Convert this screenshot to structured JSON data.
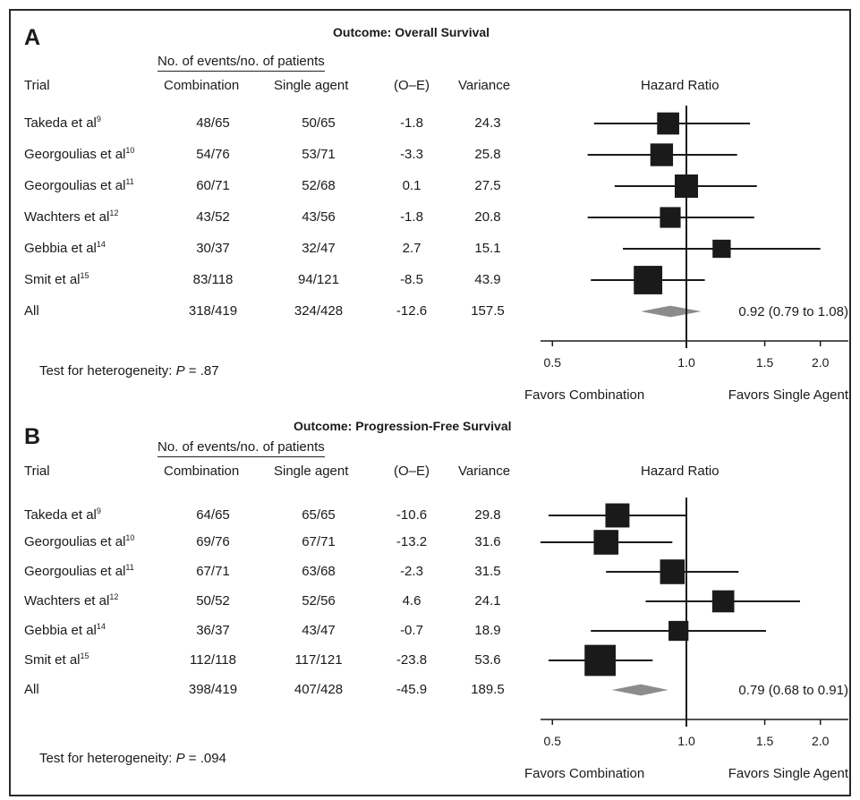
{
  "chart_data": [
    {
      "type": "forest",
      "panel": "A",
      "title": "Outcome: Overall Survival",
      "columns": {
        "trial": "Trial",
        "events_group": "No. of events/no. of patients",
        "combination": "Combination",
        "single": "Single agent",
        "oe": "(O–E)",
        "variance": "Variance",
        "hr": "Hazard Ratio"
      },
      "rows": [
        {
          "name": "Takeda et al",
          "ref": "9",
          "combination": "48/65",
          "single": "50/65",
          "oe": "-1.8",
          "variance": "24.3",
          "hr": 0.91,
          "lo": 0.62,
          "hi": 1.39,
          "weight": 24.3
        },
        {
          "name": "Georgoulias et al",
          "ref": "10",
          "combination": "54/76",
          "single": "53/71",
          "oe": "-3.3",
          "variance": "25.8",
          "hr": 0.88,
          "lo": 0.6,
          "hi": 1.3,
          "weight": 25.8
        },
        {
          "name": "Georgoulias et al",
          "ref": "11",
          "combination": "60/71",
          "single": "52/68",
          "oe": "0.1",
          "variance": "27.5",
          "hr": 1.0,
          "lo": 0.69,
          "hi": 1.44,
          "weight": 27.5
        },
        {
          "name": "Wachters et al",
          "ref": "12",
          "combination": "43/52",
          "single": "43/56",
          "oe": "-1.8",
          "variance": "20.8",
          "hr": 0.92,
          "lo": 0.6,
          "hi": 1.42,
          "weight": 20.8
        },
        {
          "name": "Gebbia et al",
          "ref": "14",
          "combination": "30/37",
          "single": "32/47",
          "oe": "2.7",
          "variance": "15.1",
          "hr": 1.2,
          "lo": 0.72,
          "hi": 2.0,
          "weight": 15.1
        },
        {
          "name": "Smit et al",
          "ref": "15",
          "combination": "83/118",
          "single": "94/121",
          "oe": "-8.5",
          "variance": "43.9",
          "hr": 0.82,
          "lo": 0.61,
          "hi": 1.1,
          "weight": 43.9
        }
      ],
      "overall": {
        "name": "All",
        "combination": "318/419",
        "single": "324/428",
        "oe": "-12.6",
        "variance": "157.5",
        "hr": 0.92,
        "lo": 0.79,
        "hi": 1.08,
        "label": "0.92 (0.79 to 1.08)"
      },
      "heterogeneity": {
        "prefix": "Test for heterogeneity: ",
        "p_symbol": "P",
        "value": " = .87"
      },
      "x_scale": "log",
      "xlim": [
        0.5,
        2.0
      ],
      "xticks": [
        "0.5",
        "1.0",
        "1.5",
        "2.0"
      ],
      "favors_left": "Favors Combination",
      "favors_right": "Favors Single Agent"
    },
    {
      "type": "forest",
      "panel": "B",
      "title": "Outcome: Progression-Free Survival",
      "columns": {
        "trial": "Trial",
        "events_group": "No. of events/no. of patients",
        "combination": "Combination",
        "single": "Single agent",
        "oe": "(O–E)",
        "variance": "Variance",
        "hr": "Hazard Ratio"
      },
      "rows": [
        {
          "name": "Takeda et al",
          "ref": "9",
          "combination": "64/65",
          "single": "65/65",
          "oe": "-10.6",
          "variance": "29.8",
          "hr": 0.7,
          "lo": 0.49,
          "hi": 1.0,
          "weight": 29.8
        },
        {
          "name": "Georgoulias et al",
          "ref": "10",
          "combination": "69/76",
          "single": "67/71",
          "oe": "-13.2",
          "variance": "31.6",
          "hr": 0.66,
          "lo": 0.47,
          "hi": 0.93,
          "weight": 31.6
        },
        {
          "name": "Georgoulias et al",
          "ref": "11",
          "combination": "67/71",
          "single": "63/68",
          "oe": "-2.3",
          "variance": "31.5",
          "hr": 0.93,
          "lo": 0.66,
          "hi": 1.31,
          "weight": 31.5
        },
        {
          "name": "Wachters et al",
          "ref": "12",
          "combination": "50/52",
          "single": "52/56",
          "oe": "4.6",
          "variance": "24.1",
          "hr": 1.21,
          "lo": 0.81,
          "hi": 1.8,
          "weight": 24.1
        },
        {
          "name": "Gebbia et al",
          "ref": "14",
          "combination": "36/37",
          "single": "43/47",
          "oe": "-0.7",
          "variance": "18.9",
          "hr": 0.96,
          "lo": 0.61,
          "hi": 1.51,
          "weight": 18.9
        },
        {
          "name": "Smit et al",
          "ref": "15",
          "combination": "112/118",
          "single": "117/121",
          "oe": "-23.8",
          "variance": "53.6",
          "hr": 0.64,
          "lo": 0.49,
          "hi": 0.84,
          "weight": 53.6
        }
      ],
      "overall": {
        "name": "All",
        "combination": "398/419",
        "single": "407/428",
        "oe": "-45.9",
        "variance": "189.5",
        "hr": 0.79,
        "lo": 0.68,
        "hi": 0.91,
        "label": "0.79 (0.68 to 0.91)"
      },
      "heterogeneity": {
        "prefix": "Test for heterogeneity: ",
        "p_symbol": "P",
        "value": " = .094"
      },
      "x_scale": "log",
      "xlim": [
        0.5,
        2.0
      ],
      "xticks": [
        "0.5",
        "1.0",
        "1.5",
        "2.0"
      ],
      "favors_left": "Favors Combination",
      "favors_right": "Favors Single Agent"
    }
  ],
  "panel_letters": [
    "A",
    "B"
  ],
  "colors": {
    "marker": "#1a1a1a",
    "diamond": "#8c8c8c",
    "line": "#1a1a1a"
  }
}
